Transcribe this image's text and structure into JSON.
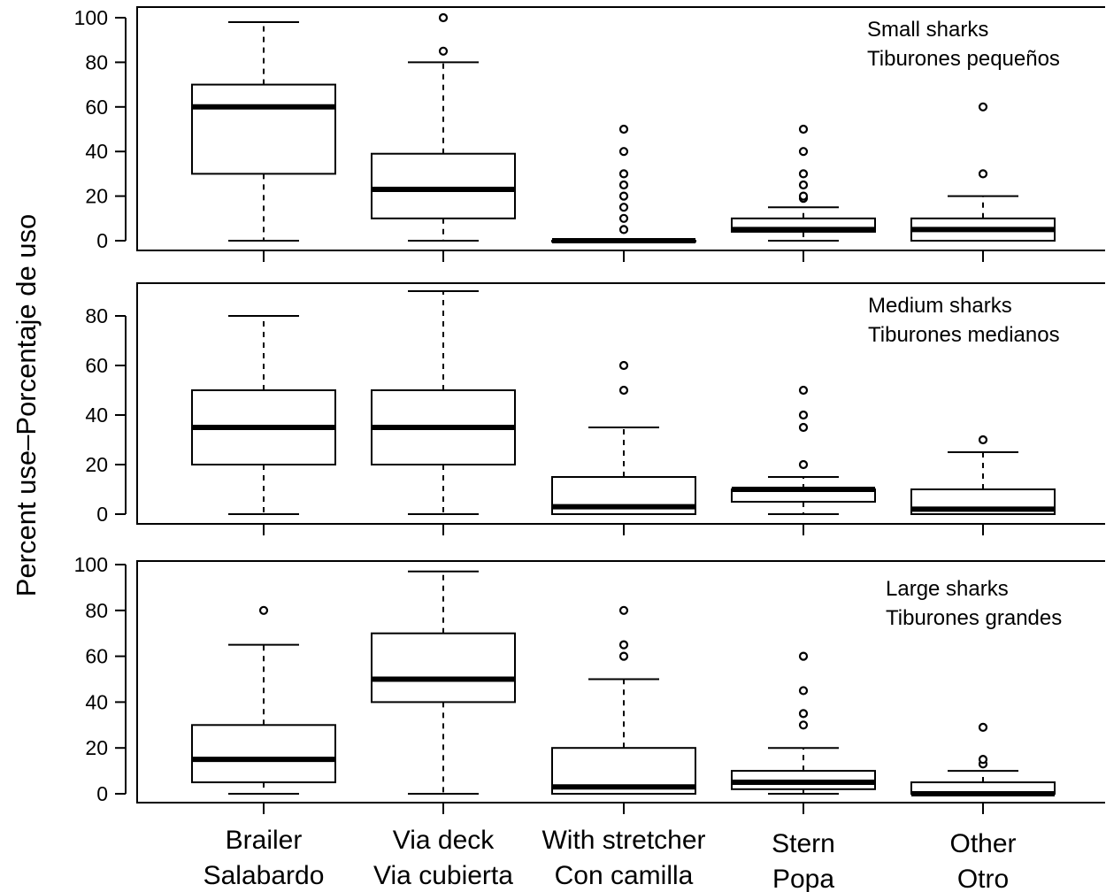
{
  "chart_data": {
    "type": "boxplot",
    "ylabel": "Percent use–Porcentaje de uso",
    "categories": [
      [
        "Brailer",
        "Salabardo"
      ],
      [
        "Via deck",
        "Via cubierta"
      ],
      [
        "With stretcher",
        "Con camilla"
      ],
      [
        "Stern",
        "Popa"
      ],
      [
        "Other",
        "Otro"
      ]
    ],
    "panels": [
      {
        "annotation": [
          "Small sharks",
          "Tiburones pequeños"
        ],
        "ylim": [
          -4,
          100
        ],
        "yticks": [
          0,
          20,
          40,
          60,
          80,
          100
        ],
        "boxes": [
          {
            "min": 0,
            "q1": 30,
            "median": 60,
            "q3": 70,
            "max": 98,
            "outliers": []
          },
          {
            "min": 0,
            "q1": 10,
            "median": 23,
            "q3": 39,
            "max": 80,
            "outliers": [
              85,
              100
            ]
          },
          {
            "min": 0,
            "q1": 0,
            "median": 0,
            "q3": 0,
            "max": 0,
            "outliers": [
              5,
              10,
              15,
              20,
              25,
              30,
              40,
              50
            ]
          },
          {
            "min": 0,
            "q1": 4,
            "median": 5,
            "q3": 10,
            "max": 15,
            "outliers": [
              19,
              20,
              25,
              30,
              40,
              50
            ]
          },
          {
            "min": 0,
            "q1": 0,
            "median": 5,
            "q3": 10,
            "max": 20,
            "outliers": [
              30,
              60
            ]
          }
        ]
      },
      {
        "annotation": [
          "Medium sharks",
          "Tiburones medianos"
        ],
        "ylim": [
          -4,
          93
        ],
        "yticks": [
          0,
          20,
          40,
          60,
          80
        ],
        "boxes": [
          {
            "min": 0,
            "q1": 20,
            "median": 35,
            "q3": 50,
            "max": 80,
            "outliers": []
          },
          {
            "min": 0,
            "q1": 20,
            "median": 35,
            "q3": 50,
            "max": 90,
            "outliers": []
          },
          {
            "min": 0,
            "q1": 0,
            "median": 3,
            "q3": 15,
            "max": 35,
            "outliers": [
              50,
              60
            ]
          },
          {
            "min": 0,
            "q1": 5,
            "median": 10,
            "q3": 10,
            "max": 15,
            "outliers": [
              20,
              35,
              40,
              50
            ]
          },
          {
            "min": 0,
            "q1": 0,
            "median": 2,
            "q3": 10,
            "max": 25,
            "outliers": [
              30
            ]
          }
        ]
      },
      {
        "annotation": [
          "Large sharks",
          "Tiburones grandes"
        ],
        "ylim": [
          -4,
          100
        ],
        "yticks": [
          0,
          20,
          40,
          60,
          80,
          100
        ],
        "boxes": [
          {
            "min": 0,
            "q1": 5,
            "median": 15,
            "q3": 30,
            "max": 65,
            "outliers": [
              80
            ]
          },
          {
            "min": 0,
            "q1": 40,
            "median": 50,
            "q3": 70,
            "max": 97,
            "outliers": []
          },
          {
            "min": 0,
            "q1": 0,
            "median": 3,
            "q3": 20,
            "max": 50,
            "outliers": [
              60,
              65,
              80
            ]
          },
          {
            "min": 0,
            "q1": 2,
            "median": 5,
            "q3": 10,
            "max": 20,
            "outliers": [
              30,
              35,
              45,
              60
            ]
          },
          {
            "min": 0,
            "q1": 0,
            "median": 0,
            "q3": 5,
            "max": 10,
            "outliers": [
              13,
              15,
              29
            ]
          }
        ]
      }
    ]
  }
}
